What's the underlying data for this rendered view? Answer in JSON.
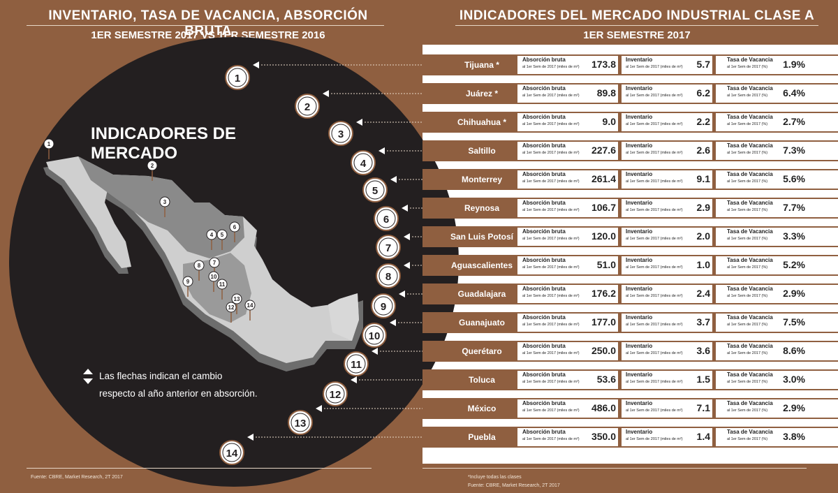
{
  "header_left": {
    "title": "INVENTARIO, TASA DE VACANCIA, ABSORCIÓN BRUTA",
    "subtitle": "1ER SEMESTRE 2017 VS 1ER SEMESTRE 2016"
  },
  "header_right": {
    "title": "INDICADORES DEL MERCADO INDUSTRIAL CLASE A",
    "subtitle": "1ER SEMESTRE 2017"
  },
  "map": {
    "title": "INDICADORES DE MERCADO",
    "legend_line1": "Las flechas indican el cambio",
    "legend_line2": "respecto al año anterior en absorción.",
    "pin_numbers": [
      "1",
      "2",
      "3",
      "4",
      "5",
      "6",
      "7",
      "8",
      "9",
      "10",
      "11",
      "12",
      "13",
      "14"
    ],
    "colors": {
      "circle": "#231f20",
      "map_light": "#d0d0d0",
      "map_dark": "#8a8a8a",
      "accent": "#8f5f40"
    }
  },
  "table": {
    "label_abs": "Absorción bruta",
    "label_abs_sub": "al 1er  Sem de 2017 (miles de m²)",
    "label_inv": "Inventario",
    "label_inv_sub": "al 1er  Sem  de 2017  (miles de m²)",
    "label_vac": "Tasa  de Vacancia",
    "label_vac_sub": "al 1er  Sem de 2017 (%)",
    "rows": [
      {
        "num": "1",
        "city": "Tijuana  *",
        "abs": "173.8",
        "inv": "5.7",
        "vac": "1.9%"
      },
      {
        "num": "2",
        "city": "Juárez  *",
        "abs": "89.8",
        "inv": "6.2",
        "vac": "6.4%"
      },
      {
        "num": "3",
        "city": "Chihuahua *",
        "abs": "9.0",
        "inv": "2.2",
        "vac": "2.7%"
      },
      {
        "num": "4",
        "city": "Saltillo",
        "abs": "227.6",
        "inv": "2.6",
        "vac": "7.3%"
      },
      {
        "num": "5",
        "city": "Monterrey",
        "abs": "261.4",
        "inv": "9.1",
        "vac": "5.6%"
      },
      {
        "num": "6",
        "city": "Reynosa",
        "abs": "106.7",
        "inv": "2.9",
        "vac": "7.7%"
      },
      {
        "num": "7",
        "city": "San Luis Potosí",
        "abs": "120.0",
        "inv": "2.0",
        "vac": "3.3%"
      },
      {
        "num": "8",
        "city": "Aguascalientes",
        "abs": "51.0",
        "inv": "1.0",
        "vac": "5.2%"
      },
      {
        "num": "9",
        "city": "Guadalajara",
        "abs": "176.2",
        "inv": "2.4",
        "vac": "2.9%"
      },
      {
        "num": "10",
        "city": "Guanajuato",
        "abs": "177.0",
        "inv": "3.7",
        "vac": "7.5%"
      },
      {
        "num": "11",
        "city": "Querétaro",
        "abs": "250.0",
        "inv": "3.6",
        "vac": "8.6%"
      },
      {
        "num": "12",
        "city": "Toluca",
        "abs": "53.6",
        "inv": "1.5",
        "vac": "3.0%"
      },
      {
        "num": "13",
        "city": "México",
        "abs": "486.0",
        "inv": "7.1",
        "vac": "2.9%"
      },
      {
        "num": "14",
        "city": "Puebla",
        "abs": "350.0",
        "inv": "1.4",
        "vac": "3.8%"
      }
    ]
  },
  "footer": {
    "source_left": "Fuente: CBRE, Market Research, 2T 2017",
    "note_right": "*Incluye todas las clases",
    "source_right": "Fuente: CBRE, Market Research, 2T 2017"
  }
}
